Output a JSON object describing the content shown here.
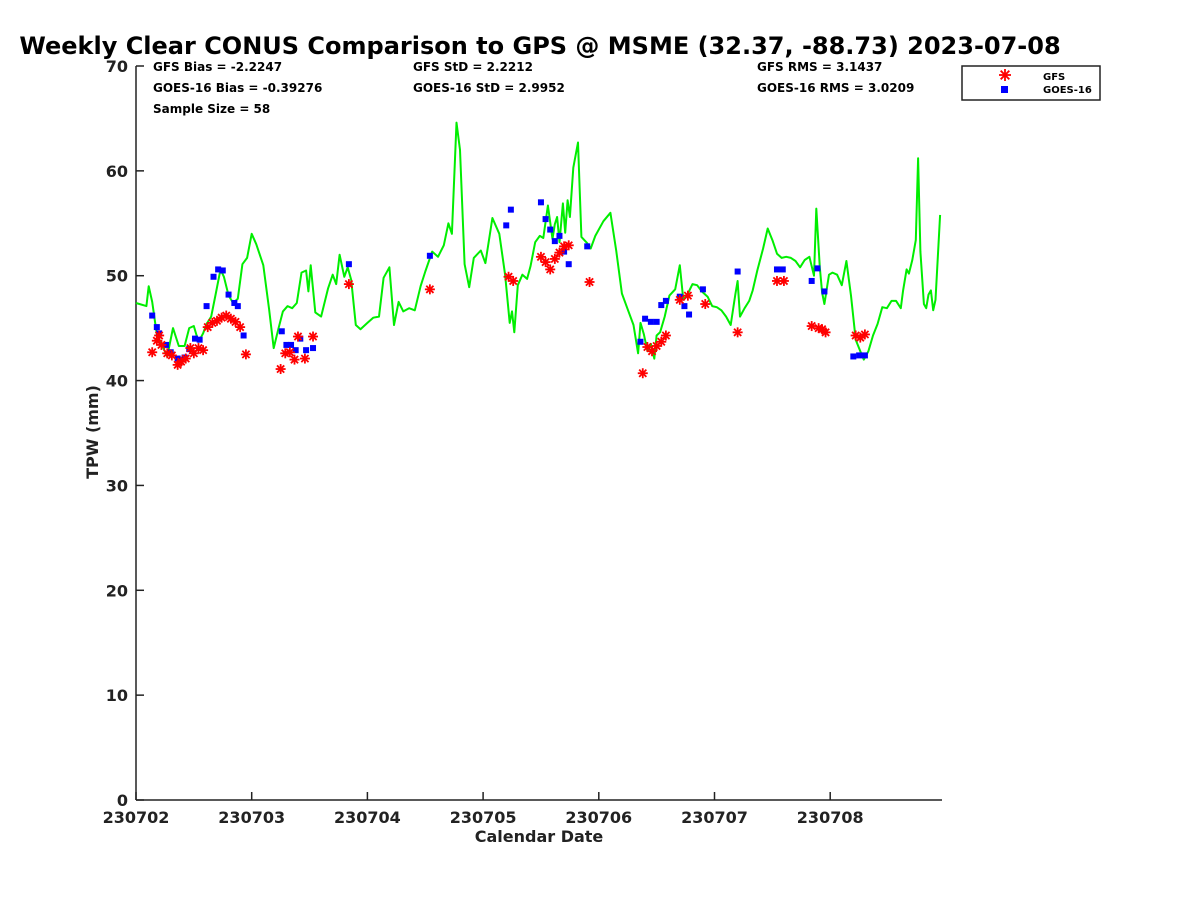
{
  "chart_data": {
    "type": "scatter",
    "title": "Weekly Clear CONUS Comparison to GPS @ MSME (32.37, -88.73) 2023-07-08",
    "xlabel": "Calendar Date",
    "ylabel": "TPW (mm)",
    "ylim": [
      0,
      70
    ],
    "xlim": [
      0,
      6.95
    ],
    "x_unit": "days since 230702",
    "yticks": [
      0,
      10,
      20,
      30,
      40,
      50,
      60,
      70
    ],
    "xtick_labels": [
      "230702",
      "230703",
      "230704",
      "230705",
      "230706",
      "230707",
      "230708"
    ],
    "grid": false,
    "legend_position": "top-right",
    "stats": {
      "gfs_bias": "GFS Bias = -2.2247",
      "goes_bias": "GOES-16 Bias = -0.39276",
      "sample_size": "Sample Size = 58",
      "gfs_std": "GFS StD = 2.2212",
      "goes_std": "GOES-16 StD = 2.9952",
      "gfs_rms": "GFS RMS = 3.1437",
      "goes_rms": "GOES-16 RMS = 3.0209"
    },
    "series": [
      {
        "name": "GPS",
        "style": "line",
        "color": "#00ff00",
        "points": [
          [
            0,
            47.4
          ],
          [
            0.09,
            47.1
          ],
          [
            0.11,
            49
          ],
          [
            0.14,
            47.5
          ],
          [
            0.18,
            44.4
          ],
          [
            0.22,
            43.5
          ],
          [
            0.27,
            42.3
          ],
          [
            0.32,
            45
          ],
          [
            0.37,
            43.3
          ],
          [
            0.42,
            43.3
          ],
          [
            0.46,
            45
          ],
          [
            0.5,
            45.2
          ],
          [
            0.54,
            43.7
          ],
          [
            0.58,
            44.5
          ],
          [
            0.61,
            45.4
          ],
          [
            0.65,
            46.1
          ],
          [
            0.69,
            48.3
          ],
          [
            0.73,
            50.6
          ],
          [
            0.76,
            49.9
          ],
          [
            0.8,
            48.1
          ],
          [
            0.84,
            47.4
          ],
          [
            0.88,
            47.8
          ],
          [
            0.92,
            51.1
          ],
          [
            0.96,
            51.7
          ],
          [
            1.0,
            54
          ],
          [
            1.04,
            53
          ],
          [
            1.1,
            51
          ],
          [
            1.15,
            46.8
          ],
          [
            1.19,
            43.1
          ],
          [
            1.23,
            44.9
          ],
          [
            1.27,
            46.6
          ],
          [
            1.31,
            47.1
          ],
          [
            1.35,
            46.9
          ],
          [
            1.39,
            47.4
          ],
          [
            1.43,
            50.3
          ],
          [
            1.47,
            50.5
          ],
          [
            1.49,
            48.5
          ],
          [
            1.51,
            51
          ],
          [
            1.55,
            46.5
          ],
          [
            1.6,
            46.1
          ],
          [
            1.66,
            48.8
          ],
          [
            1.7,
            50.1
          ],
          [
            1.73,
            49.2
          ],
          [
            1.76,
            52
          ],
          [
            1.8,
            49.9
          ],
          [
            1.83,
            50.8
          ],
          [
            1.86,
            49.6
          ],
          [
            1.9,
            45.3
          ],
          [
            1.94,
            44.9
          ],
          [
            2.0,
            45.5
          ],
          [
            2.05,
            46
          ],
          [
            2.1,
            46.1
          ],
          [
            2.14,
            49.8
          ],
          [
            2.19,
            50.8
          ],
          [
            2.23,
            45.3
          ],
          [
            2.27,
            47.5
          ],
          [
            2.31,
            46.6
          ],
          [
            2.36,
            46.9
          ],
          [
            2.41,
            46.7
          ],
          [
            2.46,
            49
          ],
          [
            2.5,
            50.4
          ],
          [
            2.56,
            52.3
          ],
          [
            2.61,
            51.8
          ],
          [
            2.66,
            52.9
          ],
          [
            2.7,
            55
          ],
          [
            2.73,
            54
          ],
          [
            2.77,
            64.6
          ],
          [
            2.8,
            62
          ],
          [
            2.84,
            51.1
          ],
          [
            2.88,
            48.9
          ],
          [
            2.92,
            51.7
          ],
          [
            2.98,
            52.4
          ],
          [
            3.02,
            51.2
          ],
          [
            3.08,
            55.5
          ],
          [
            3.14,
            54
          ],
          [
            3.19,
            50.1
          ],
          [
            3.23,
            45.5
          ],
          [
            3.25,
            46.6
          ],
          [
            3.27,
            44.6
          ],
          [
            3.3,
            49.1
          ],
          [
            3.34,
            50.1
          ],
          [
            3.38,
            49.7
          ],
          [
            3.41,
            50.9
          ],
          [
            3.45,
            53.2
          ],
          [
            3.49,
            53.8
          ],
          [
            3.52,
            53.6
          ],
          [
            3.56,
            56.7
          ],
          [
            3.6,
            53.5
          ],
          [
            3.62,
            54.9
          ],
          [
            3.64,
            55.6
          ],
          [
            3.66,
            53.2
          ],
          [
            3.69,
            56.9
          ],
          [
            3.71,
            54.1
          ],
          [
            3.73,
            57.2
          ],
          [
            3.75,
            55.6
          ],
          [
            3.78,
            60.3
          ],
          [
            3.82,
            62.7
          ],
          [
            3.85,
            53.7
          ],
          [
            3.9,
            53.1
          ],
          [
            3.93,
            52.6
          ],
          [
            3.97,
            53.8
          ],
          [
            4.04,
            55.2
          ],
          [
            4.1,
            56
          ],
          [
            4.15,
            52.4
          ],
          [
            4.2,
            48.3
          ],
          [
            4.25,
            46.8
          ],
          [
            4.3,
            45.3
          ],
          [
            4.34,
            42.6
          ],
          [
            4.36,
            45.5
          ],
          [
            4.39,
            44.4
          ],
          [
            4.42,
            42.8
          ],
          [
            4.45,
            43.5
          ],
          [
            4.48,
            42.1
          ],
          [
            4.5,
            44.3
          ],
          [
            4.53,
            44.6
          ],
          [
            4.57,
            46.1
          ],
          [
            4.61,
            48.1
          ],
          [
            4.66,
            48.7
          ],
          [
            4.7,
            51
          ],
          [
            4.73,
            47.7
          ],
          [
            4.77,
            48.3
          ],
          [
            4.81,
            49.2
          ],
          [
            4.85,
            49.1
          ],
          [
            4.89,
            48.5
          ],
          [
            4.94,
            48
          ],
          [
            4.98,
            47.1
          ],
          [
            5.02,
            47
          ],
          [
            5.06,
            46.7
          ],
          [
            5.1,
            46.1
          ],
          [
            5.14,
            45.3
          ],
          [
            5.18,
            48.2
          ],
          [
            5.2,
            49.5
          ],
          [
            5.22,
            46.1
          ],
          [
            5.26,
            46.9
          ],
          [
            5.3,
            47.6
          ],
          [
            5.33,
            48.6
          ],
          [
            5.37,
            50.5
          ],
          [
            5.42,
            52.6
          ],
          [
            5.46,
            54.5
          ],
          [
            5.5,
            53.4
          ],
          [
            5.54,
            52.1
          ],
          [
            5.58,
            51.7
          ],
          [
            5.62,
            51.8
          ],
          [
            5.66,
            51.7
          ],
          [
            5.7,
            51.4
          ],
          [
            5.74,
            50.8
          ],
          [
            5.78,
            51.5
          ],
          [
            5.82,
            51.8
          ],
          [
            5.86,
            50
          ],
          [
            5.88,
            56.4
          ],
          [
            5.91,
            50.8
          ],
          [
            5.93,
            48.4
          ],
          [
            5.95,
            47.3
          ],
          [
            5.99,
            50.1
          ],
          [
            6.02,
            50.3
          ],
          [
            6.06,
            50.1
          ],
          [
            6.1,
            49.1
          ],
          [
            6.14,
            51.4
          ],
          [
            6.18,
            48.1
          ],
          [
            6.22,
            43.9
          ],
          [
            6.26,
            42.8
          ],
          [
            6.29,
            42
          ],
          [
            6.33,
            42.8
          ],
          [
            6.37,
            44.3
          ],
          [
            6.41,
            45.4
          ],
          [
            6.45,
            47
          ],
          [
            6.49,
            46.9
          ],
          [
            6.53,
            47.6
          ],
          [
            6.57,
            47.6
          ],
          [
            6.61,
            46.9
          ],
          [
            6.63,
            48.6
          ],
          [
            6.66,
            50.6
          ],
          [
            6.68,
            50.2
          ],
          [
            6.71,
            51.5
          ],
          [
            6.74,
            53.4
          ],
          [
            6.76,
            61.2
          ],
          [
            6.78,
            52.3
          ],
          [
            6.81,
            47.3
          ],
          [
            6.83,
            46.9
          ],
          [
            6.85,
            48.2
          ],
          [
            6.87,
            48.6
          ],
          [
            6.89,
            46.7
          ],
          [
            6.91,
            47.7
          ],
          [
            6.95,
            55.8
          ]
        ]
      },
      {
        "name": "GFS",
        "style": "asterisk",
        "color": "#ff0000",
        "points": [
          [
            0.14,
            42.7
          ],
          [
            0.18,
            43.8
          ],
          [
            0.2,
            44.3
          ],
          [
            0.22,
            43.4
          ],
          [
            0.27,
            42.6
          ],
          [
            0.31,
            42.4
          ],
          [
            0.36,
            41.5
          ],
          [
            0.39,
            41.8
          ],
          [
            0.43,
            42.1
          ],
          [
            0.47,
            43.1
          ],
          [
            0.5,
            42.6
          ],
          [
            0.54,
            43.1
          ],
          [
            0.58,
            42.9
          ],
          [
            0.62,
            45.1
          ],
          [
            0.66,
            45.5
          ],
          [
            0.7,
            45.7
          ],
          [
            0.74,
            46
          ],
          [
            0.78,
            46.2
          ],
          [
            0.82,
            45.9
          ],
          [
            0.86,
            45.6
          ],
          [
            0.9,
            45.1
          ],
          [
            0.95,
            42.5
          ],
          [
            1.25,
            41.1
          ],
          [
            1.29,
            42.6
          ],
          [
            1.33,
            42.7
          ],
          [
            1.37,
            42
          ],
          [
            1.4,
            44.2
          ],
          [
            1.46,
            42.1
          ],
          [
            1.53,
            44.2
          ],
          [
            1.84,
            49.2
          ],
          [
            2.54,
            48.7
          ],
          [
            3.22,
            49.9
          ],
          [
            3.26,
            49.5
          ],
          [
            3.5,
            51.8
          ],
          [
            3.54,
            51.3
          ],
          [
            3.58,
            50.6
          ],
          [
            3.62,
            51.6
          ],
          [
            3.66,
            52.2
          ],
          [
            3.7,
            52.8
          ],
          [
            3.74,
            52.9
          ],
          [
            3.92,
            49.4
          ],
          [
            4.38,
            40.7
          ],
          [
            4.42,
            43.2
          ],
          [
            4.46,
            42.8
          ],
          [
            4.5,
            43.3
          ],
          [
            4.54,
            43.7
          ],
          [
            4.58,
            44.3
          ],
          [
            4.7,
            47.7
          ],
          [
            4.77,
            48.1
          ],
          [
            4.92,
            47.3
          ],
          [
            5.2,
            44.6
          ],
          [
            5.54,
            49.5
          ],
          [
            5.6,
            49.5
          ],
          [
            5.84,
            45.2
          ],
          [
            5.9,
            45
          ],
          [
            5.93,
            44.9
          ],
          [
            5.96,
            44.6
          ],
          [
            6.22,
            44.3
          ],
          [
            6.26,
            44.1
          ],
          [
            6.3,
            44.4
          ]
        ]
      },
      {
        "name": "GOES-16",
        "style": "square",
        "color": "#0000ff",
        "points": [
          [
            0.14,
            46.2
          ],
          [
            0.18,
            45.1
          ],
          [
            0.2,
            44.5
          ],
          [
            0.26,
            43.4
          ],
          [
            0.3,
            42.7
          ],
          [
            0.36,
            42.1
          ],
          [
            0.42,
            42.2
          ],
          [
            0.46,
            43
          ],
          [
            0.51,
            44
          ],
          [
            0.55,
            43.9
          ],
          [
            0.61,
            47.1
          ],
          [
            0.67,
            49.9
          ],
          [
            0.71,
            50.6
          ],
          [
            0.75,
            50.5
          ],
          [
            0.8,
            48.2
          ],
          [
            0.85,
            47.4
          ],
          [
            0.88,
            47.1
          ],
          [
            0.93,
            44.3
          ],
          [
            1.26,
            44.7
          ],
          [
            1.3,
            43.4
          ],
          [
            1.34,
            43.4
          ],
          [
            1.38,
            42.9
          ],
          [
            1.42,
            44
          ],
          [
            1.47,
            42.9
          ],
          [
            1.53,
            43.1
          ],
          [
            1.84,
            51.1
          ],
          [
            2.54,
            51.9
          ],
          [
            3.2,
            54.8
          ],
          [
            3.24,
            56.3
          ],
          [
            3.5,
            57
          ],
          [
            3.54,
            55.4
          ],
          [
            3.58,
            54.4
          ],
          [
            3.62,
            53.3
          ],
          [
            3.66,
            53.8
          ],
          [
            3.7,
            52.3
          ],
          [
            3.74,
            51.1
          ],
          [
            3.9,
            52.8
          ],
          [
            4.36,
            43.7
          ],
          [
            4.4,
            45.9
          ],
          [
            4.45,
            45.6
          ],
          [
            4.5,
            45.6
          ],
          [
            4.54,
            47.2
          ],
          [
            4.58,
            47.6
          ],
          [
            4.7,
            48
          ],
          [
            4.74,
            47.1
          ],
          [
            4.78,
            46.3
          ],
          [
            4.9,
            48.7
          ],
          [
            5.2,
            50.4
          ],
          [
            5.54,
            50.6
          ],
          [
            5.59,
            50.6
          ],
          [
            5.84,
            49.5
          ],
          [
            5.89,
            50.7
          ],
          [
            5.95,
            48.5
          ],
          [
            6.2,
            42.3
          ],
          [
            6.25,
            42.4
          ],
          [
            6.3,
            42.4
          ]
        ]
      }
    ]
  }
}
